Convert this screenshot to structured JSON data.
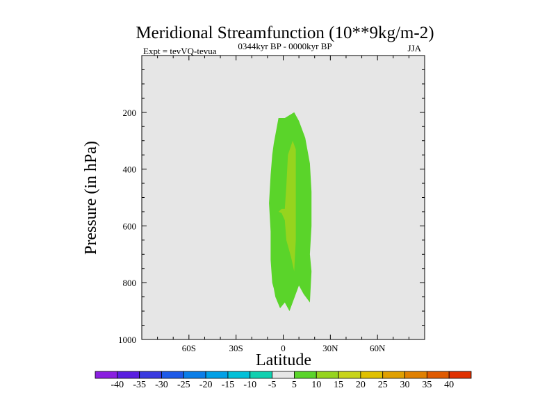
{
  "chart_data": {
    "type": "heatmap",
    "title": "Meridional Streamfunction (10**9kg/m-2)",
    "left_string": "Expt = tevVQ-tevua",
    "center_string": "0344kyr BP - 0000kyr BP",
    "right_string": "JJA",
    "xlabel": "Latitude",
    "ylabel": "Pressure (in hPa)",
    "xlim": [
      -90,
      90
    ],
    "ylim": [
      1000,
      0
    ],
    "x_ticks": [
      -60,
      -30,
      0,
      30,
      60
    ],
    "x_tick_labels": [
      "60S",
      "30S",
      "0",
      "30N",
      "60N"
    ],
    "y_ticks": [
      200,
      400,
      600,
      800,
      1000
    ],
    "y_tick_labels": [
      "200",
      "400",
      "600",
      "800",
      "1000"
    ],
    "background_color": "#e6e6e6",
    "colorbar": {
      "labels": [
        "-40",
        "-35",
        "-30",
        "-25",
        "-20",
        "-15",
        "-10",
        "-5",
        "5",
        "10",
        "15",
        "20",
        "25",
        "30",
        "35",
        "40"
      ],
      "colors": [
        "#8a1fe0",
        "#5a1fe0",
        "#3a3ae0",
        "#1e5ae8",
        "#0a7ee8",
        "#00a0e6",
        "#00c0d8",
        "#10d0b0",
        "#e6e6e6",
        "#5ad42a",
        "#96d41e",
        "#c8d41a",
        "#e0c000",
        "#e0a000",
        "#e08000",
        "#e05a00",
        "#e03000"
      ]
    },
    "contours": [
      {
        "level_range": "5 to 10",
        "color": "#5ad42a",
        "polygon": [
          [
            -3,
            220
          ],
          [
            1,
            220
          ],
          [
            7,
            200
          ],
          [
            10,
            230
          ],
          [
            14,
            290
          ],
          [
            17,
            380
          ],
          [
            18,
            480
          ],
          [
            18,
            600
          ],
          [
            17,
            700
          ],
          [
            18,
            760
          ],
          [
            17,
            870
          ],
          [
            13,
            840
          ],
          [
            10,
            810
          ],
          [
            6,
            870
          ],
          [
            4,
            900
          ],
          [
            1,
            870
          ],
          [
            -2,
            890
          ],
          [
            -5,
            850
          ],
          [
            -6,
            820
          ],
          [
            -7,
            800
          ],
          [
            -8,
            720
          ],
          [
            -8,
            620
          ],
          [
            -9,
            520
          ],
          [
            -8,
            420
          ],
          [
            -7,
            350
          ],
          [
            -6,
            310
          ]
        ]
      },
      {
        "level_range": "10 to 15",
        "color": "#96d41e",
        "polygon": [
          [
            6,
            300
          ],
          [
            8,
            330
          ],
          [
            8,
            450
          ],
          [
            8,
            560
          ],
          [
            8,
            650
          ],
          [
            7,
            760
          ],
          [
            5,
            710
          ],
          [
            2,
            650
          ],
          [
            1,
            580
          ],
          [
            -1,
            555
          ],
          [
            -3,
            550
          ],
          [
            -1,
            540
          ],
          [
            1,
            540
          ],
          [
            2,
            460
          ],
          [
            3,
            350
          ]
        ]
      }
    ]
  }
}
